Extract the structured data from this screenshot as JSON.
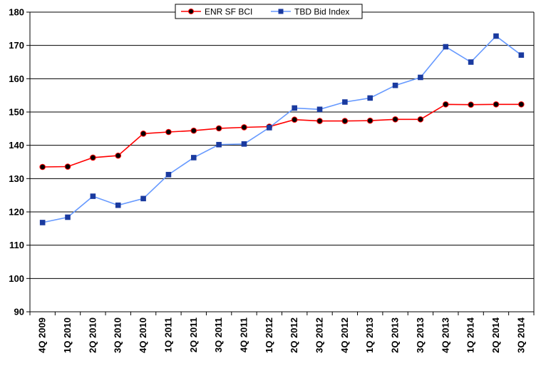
{
  "chart_data": {
    "type": "line",
    "categories": [
      "4Q 2009",
      "1Q 2010",
      "2Q 2010",
      "3Q 2010",
      "4Q 2010",
      "1Q 2011",
      "2Q 2011",
      "3Q 2011",
      "4Q 2011",
      "1Q 2012",
      "2Q 2012",
      "3Q 2012",
      "4Q 2012",
      "1Q 2013",
      "2Q 2013",
      "3Q 2013",
      "4Q 2013",
      "1Q 2014",
      "2Q 2014",
      "3Q 2014"
    ],
    "y_ticks": [
      "90",
      "100",
      "110",
      "120",
      "130",
      "140",
      "150",
      "160",
      "170",
      "180"
    ],
    "ylim": [
      90,
      180
    ],
    "grid": true,
    "legend_position": "top",
    "series": [
      {
        "name": "ENR SF BCI",
        "color": "#ff0000",
        "marker_color": "#000000",
        "marker": "circle",
        "values": [
          133.5,
          133.6,
          136.3,
          136.9,
          143.5,
          144.0,
          144.4,
          145.1,
          145.4,
          145.6,
          147.7,
          147.3,
          147.3,
          147.4,
          147.8,
          147.8,
          152.3,
          152.2,
          152.3,
          152.3
        ]
      },
      {
        "name": "TBD Bid Index",
        "color": "#6699ff",
        "marker_color": "#1a3a9f",
        "marker": "square",
        "values": [
          116.8,
          118.4,
          124.7,
          122.0,
          124.0,
          131.2,
          136.3,
          140.2,
          140.4,
          145.3,
          151.2,
          150.8,
          153.0,
          154.2,
          158.0,
          160.4,
          169.6,
          165.0,
          172.8,
          167.1
        ]
      }
    ]
  }
}
